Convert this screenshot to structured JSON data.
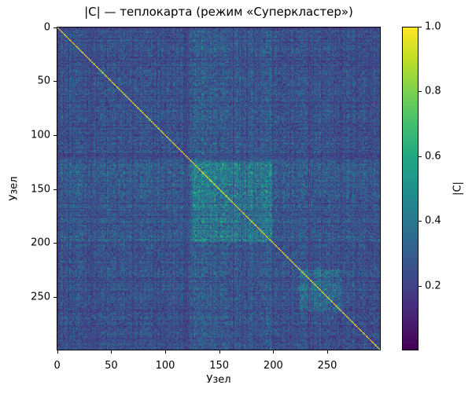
{
  "chart_data": {
    "type": "heatmap",
    "title": "|C| — теплокарта (режим «Суперкластер»)",
    "xlabel": "Узел",
    "ylabel": "Узел",
    "colorbar_label": "|C|",
    "colormap": "viridis",
    "matrix_size": 300,
    "xlim": [
      0,
      300
    ],
    "ylim": [
      300,
      0
    ],
    "x_ticks": [
      0,
      50,
      100,
      150,
      200,
      250
    ],
    "y_ticks": [
      0,
      50,
      100,
      150,
      200,
      250
    ],
    "colorbar_range": [
      0.0,
      1.0
    ],
    "colorbar_ticks": [
      "0.2",
      "0.4",
      "0.6",
      "0.8",
      "1.0"
    ],
    "diagonal_value": 1.0,
    "background_mean": 0.25,
    "clusters": [
      {
        "start": 125,
        "end": 200,
        "mean": 0.42
      },
      {
        "start": 225,
        "end": 265,
        "mean": 0.35
      },
      {
        "start": 0,
        "end": 300,
        "mean": 0.25
      }
    ],
    "grid": false,
    "legend_position": "colorbar-right"
  }
}
